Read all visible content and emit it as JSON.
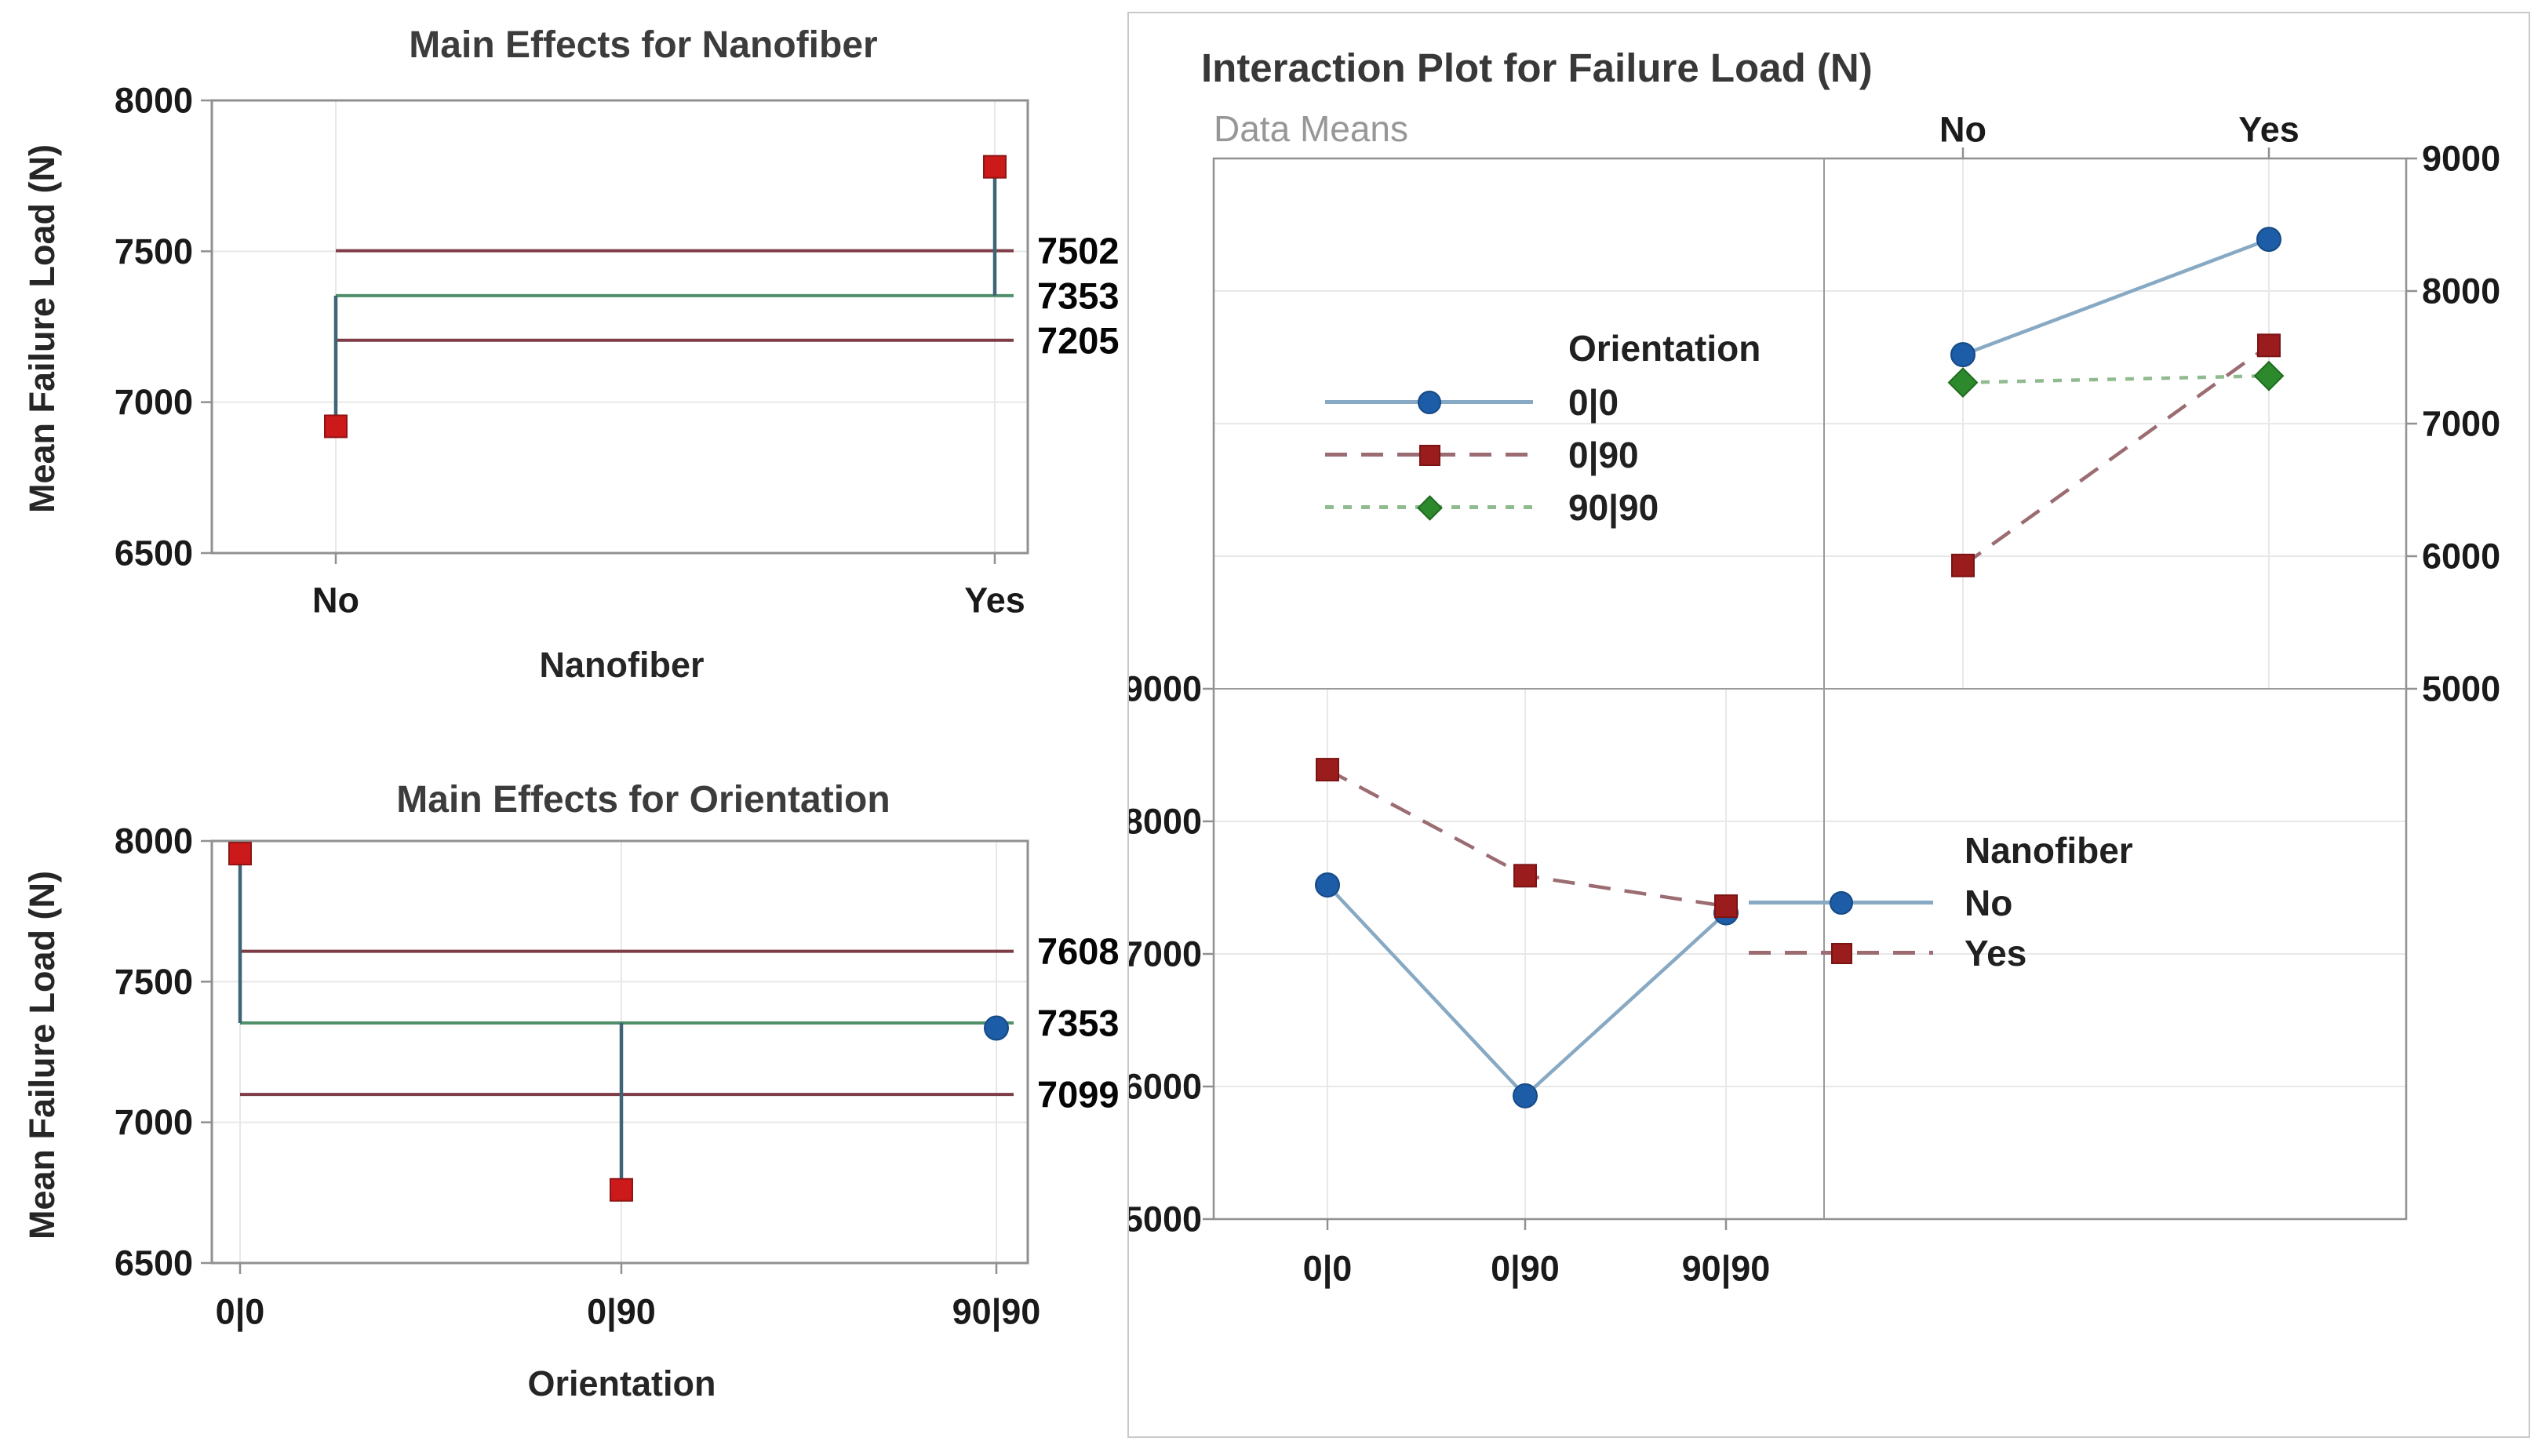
{
  "colors": {
    "point_out_of_limit": "#cc1a1a",
    "point_in_limit": "#1d5ca6",
    "center_line": "#4f906b",
    "decision_limit_line": "#7e3c46",
    "connector_line": "#3f6476",
    "series_blue_marker": "#1d5ca6",
    "series_blue_line": "#87a9c3",
    "series_red_marker": "#9b1c1c",
    "series_red_line": "#9b6c72",
    "series_green_marker": "#2c8a2c",
    "series_green_line": "#90bb90",
    "frame": "#909090",
    "grid": "#e8e8e8",
    "panel_divider": "#9a9a9a",
    "figure_border": "#c9c9c9",
    "title_text": "#3c3c3c",
    "subtitle_text": "#979797",
    "tick_text": "#1a1a1a"
  },
  "chart_data": [
    {
      "type": "line",
      "chart_kind": "anom-main-effects",
      "title": "Main Effects for Nanofiber",
      "xlabel": "Nanofiber",
      "ylabel": "Mean Failure Load (N)",
      "categories": [
        "No",
        "Yes"
      ],
      "means": [
        6920,
        7780
      ],
      "center_line": 7353,
      "upper_limit": 7502,
      "lower_limit": 7205,
      "limit_labels": [
        "7502",
        "7353",
        "7205"
      ],
      "out_of_limit": [
        true,
        true
      ],
      "ylim": [
        6500,
        8000
      ],
      "yticks": [
        "8000",
        "7500",
        "7000",
        "6500"
      ],
      "grid": "on",
      "legend_position": "none"
    },
    {
      "type": "line",
      "chart_kind": "anom-main-effects",
      "title": "Main Effects for Orientation",
      "xlabel": "Orientation",
      "ylabel": "Mean Failure Load (N)",
      "categories": [
        "0|0",
        "0|90",
        "90|90"
      ],
      "means": [
        7955,
        6760,
        7335
      ],
      "center_line": 7353,
      "upper_limit": 7608,
      "lower_limit": 7099,
      "limit_labels": [
        "7608",
        "7353",
        "7099"
      ],
      "out_of_limit": [
        true,
        true,
        false
      ],
      "ylim": [
        6500,
        8000
      ],
      "yticks": [
        "8000",
        "7500",
        "7000",
        "6500"
      ],
      "grid": "on",
      "legend_position": "none"
    },
    {
      "type": "line",
      "chart_kind": "interaction-matrix",
      "title": "Interaction Plot for Failure Load (N)",
      "subtitle": "Data Means",
      "ylim": [
        5000,
        9000
      ],
      "yticks": [
        "9000",
        "8000",
        "7000",
        "6000",
        "5000"
      ],
      "grid": "on",
      "panels": [
        {
          "x_factor": "Nanofiber",
          "categories": [
            "No",
            "Yes"
          ],
          "axis_labels_side": "top-and-right",
          "legend_title": "Orientation",
          "series": [
            {
              "name": "0|0",
              "marker": "circle",
              "line": "solid",
              "values": [
                7520,
                8390
              ]
            },
            {
              "name": "0|90",
              "marker": "square",
              "line": "dashed",
              "values": [
                5930,
                7590
              ]
            },
            {
              "name": "90|90",
              "marker": "diamond",
              "line": "dotted",
              "values": [
                7310,
                7360
              ]
            }
          ]
        },
        {
          "x_factor": "Orientation",
          "categories": [
            "0|0",
            "0|90",
            "90|90"
          ],
          "axis_labels_side": "bottom-and-left",
          "legend_title": "Nanofiber",
          "series": [
            {
              "name": "No",
              "marker": "circle",
              "line": "solid",
              "values": [
                7520,
                5930,
                7310
              ]
            },
            {
              "name": "Yes",
              "marker": "square",
              "line": "dashed",
              "values": [
                8390,
                7590,
                7360
              ]
            }
          ]
        }
      ]
    }
  ]
}
